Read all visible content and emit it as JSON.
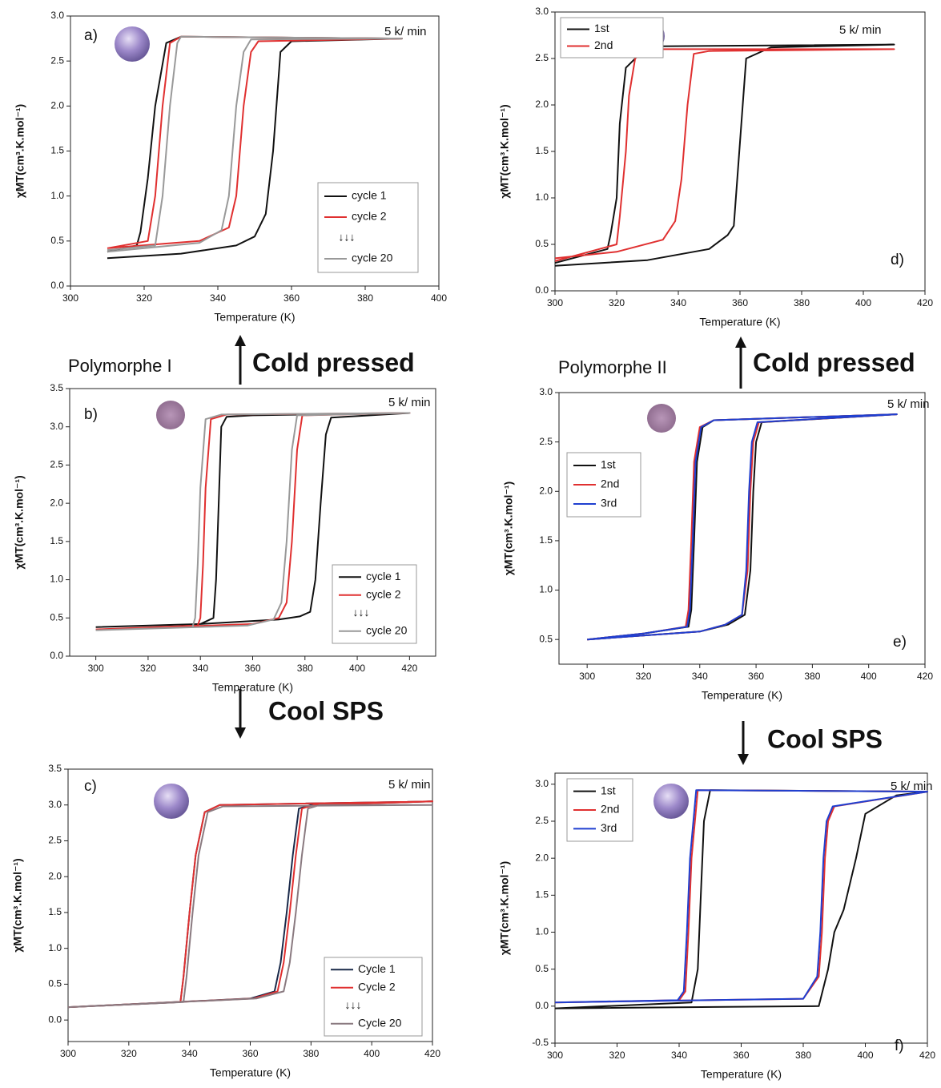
{
  "annotations": [
    "Polymorphe I",
    "Cold pressed",
    "Polymorphe II",
    "Cold pressed",
    "Cool SPS",
    "Cool SPS"
  ],
  "chart_data": [
    {
      "type": "line",
      "panel_label": "a)",
      "rate": "5 k/ min",
      "xlabel": "Temperature (K)",
      "ylabel": "χMT(cm³.K.mol⁻¹)",
      "xlim": [
        300,
        400
      ],
      "ylim": [
        0,
        3.0
      ],
      "xticks": [
        300,
        320,
        340,
        360,
        380,
        400
      ],
      "yticks": [
        {
          "value": 0,
          "label": "0.0"
        },
        0.5,
        {
          "value": 1,
          "label": "1.0"
        },
        1.5,
        {
          "value": 2,
          "label": "2.0"
        },
        2.5,
        {
          "value": 3,
          "label": "3.0"
        }
      ],
      "legend_note": "↓↓↓",
      "series": [
        {
          "name": "cycle 1",
          "color": "#111111",
          "x": [
            310,
            330,
            345,
            350,
            353,
            355,
            357,
            360,
            390,
            390,
            330,
            326,
            323,
            321,
            319,
            318,
            310
          ],
          "values": [
            0.31,
            0.36,
            0.45,
            0.55,
            0.8,
            1.5,
            2.6,
            2.72,
            2.75,
            2.75,
            2.77,
            2.7,
            2.0,
            1.2,
            0.6,
            0.45,
            0.38
          ]
        },
        {
          "name": "cycle 2",
          "color": "#e03030",
          "x": [
            310,
            335,
            343,
            345,
            347,
            349,
            351,
            390,
            390,
            330,
            327,
            325,
            323,
            321,
            310
          ],
          "values": [
            0.42,
            0.5,
            0.65,
            1.0,
            2.0,
            2.6,
            2.72,
            2.75,
            2.75,
            2.77,
            2.7,
            2.0,
            1.0,
            0.5,
            0.42
          ]
        },
        {
          "name": "cycle 20",
          "color": "#999999",
          "x": [
            310,
            335,
            341,
            343,
            345,
            347,
            349,
            390,
            390,
            330,
            329,
            327,
            325,
            323,
            310
          ],
          "values": [
            0.38,
            0.48,
            0.62,
            1.0,
            2.0,
            2.6,
            2.74,
            2.75,
            2.75,
            2.77,
            2.7,
            2.0,
            1.0,
            0.45,
            0.4
          ]
        }
      ]
    },
    {
      "type": "line",
      "panel_label": "b)",
      "rate": "5 k/ min",
      "xlabel": "Temperature (K)",
      "ylabel": "χMT(cm³.K.mol⁻¹)",
      "xlim": [
        290,
        430
      ],
      "ylim": [
        0,
        3.5
      ],
      "xticks": [
        300,
        320,
        340,
        360,
        380,
        400,
        420
      ],
      "yticks": [
        {
          "value": 0,
          "label": "0.0"
        },
        0.5,
        {
          "value": 1,
          "label": "1.0"
        },
        1.5,
        {
          "value": 2,
          "label": "2.0"
        },
        2.5,
        {
          "value": 3,
          "label": "3.0"
        },
        3.5
      ],
      "legend_note": "↓↓↓",
      "series": [
        {
          "name": "cycle 1",
          "color": "#111111",
          "x": [
            300,
            340,
            370,
            378,
            382,
            384,
            386,
            388,
            390,
            420,
            420,
            360,
            350,
            348,
            347,
            346,
            345,
            340,
            300
          ],
          "values": [
            0.38,
            0.42,
            0.48,
            0.52,
            0.58,
            1.0,
            2.0,
            2.9,
            3.12,
            3.18,
            3.18,
            3.15,
            3.13,
            3.0,
            2.0,
            1.0,
            0.5,
            0.42,
            0.38
          ]
        },
        {
          "name": "cycle 2",
          "color": "#e03030",
          "x": [
            300,
            360,
            370,
            373,
            375,
            377,
            379,
            420,
            420,
            350,
            344,
            342,
            341,
            340,
            339,
            300
          ],
          "values": [
            0.35,
            0.42,
            0.5,
            0.7,
            1.5,
            2.7,
            3.15,
            3.18,
            3.18,
            3.16,
            3.1,
            2.2,
            1.2,
            0.5,
            0.4,
            0.35
          ]
        },
        {
          "name": "cycle 20",
          "color": "#999999",
          "x": [
            300,
            358,
            368,
            371,
            373,
            375,
            377,
            420,
            420,
            348,
            342,
            340,
            339,
            338,
            337,
            300
          ],
          "values": [
            0.34,
            0.4,
            0.48,
            0.7,
            1.5,
            2.7,
            3.15,
            3.18,
            3.18,
            3.16,
            3.1,
            2.2,
            1.2,
            0.5,
            0.38,
            0.34
          ]
        }
      ]
    },
    {
      "type": "line",
      "panel_label": "c)",
      "rate": "5 k/ min",
      "xlabel": "Temperature (K)",
      "ylabel": "χMT(cm³.K.mol⁻¹)",
      "xlim": [
        300,
        420
      ],
      "ylim": [
        -0.3,
        3.5
      ],
      "xticks": [
        300,
        320,
        340,
        360,
        380,
        400,
        420
      ],
      "yticks": [
        {
          "value": 0,
          "label": "0.0"
        },
        0.5,
        {
          "value": 1,
          "label": "1.0"
        },
        1.5,
        {
          "value": 2,
          "label": "2.0"
        },
        2.5,
        {
          "value": 3,
          "label": "3.0"
        },
        3.5
      ],
      "legend_note": "↓↓↓",
      "series": [
        {
          "name": "Cycle 1",
          "color": "#1a2a4a",
          "x": [
            300,
            360,
            368,
            370,
            372,
            374,
            376,
            380,
            420,
            420,
            350,
            345,
            342,
            340,
            338,
            337,
            300
          ],
          "values": [
            0.18,
            0.3,
            0.4,
            0.8,
            1.5,
            2.3,
            2.95,
            3.0,
            3.05,
            3.05,
            3.0,
            2.9,
            2.3,
            1.5,
            0.6,
            0.25,
            0.18
          ]
        },
        {
          "name": "Cycle 2",
          "color": "#e03030",
          "x": [
            300,
            361,
            369,
            371,
            373,
            375,
            377,
            381,
            420,
            420,
            350,
            345,
            342,
            340,
            338,
            337,
            300
          ],
          "values": [
            0.18,
            0.3,
            0.4,
            0.8,
            1.5,
            2.3,
            2.95,
            3.0,
            3.05,
            3.05,
            3.0,
            2.9,
            2.3,
            1.5,
            0.6,
            0.25,
            0.18
          ]
        },
        {
          "name": "Cycle 20",
          "color": "#8a7a80",
          "x": [
            300,
            362,
            371,
            373,
            375,
            377,
            379,
            383,
            420,
            420,
            351,
            346,
            343,
            341,
            339,
            338,
            300
          ],
          "values": [
            0.18,
            0.3,
            0.4,
            0.8,
            1.5,
            2.3,
            2.95,
            3.0,
            3.0,
            3.0,
            2.98,
            2.9,
            2.3,
            1.5,
            0.6,
            0.25,
            0.18
          ]
        }
      ]
    },
    {
      "type": "line",
      "panel_label": "d)",
      "rate": "5 k/ min",
      "xlabel": "Temperature (K)",
      "ylabel": "χMT(cm³.K.mol⁻¹)",
      "xlim": [
        300,
        420
      ],
      "ylim": [
        0,
        3.0
      ],
      "xticks": [
        300,
        320,
        340,
        360,
        380,
        400,
        420
      ],
      "yticks": [
        {
          "value": 0,
          "label": "0.0"
        },
        0.5,
        {
          "value": 1,
          "label": "1.0"
        },
        1.5,
        {
          "value": 2,
          "label": "2.0"
        },
        2.5,
        {
          "value": 3,
          "label": "3.0"
        }
      ],
      "series": [
        {
          "name": "1st",
          "color": "#111111",
          "x": [
            300,
            330,
            350,
            356,
            358,
            360,
            362,
            370,
            410,
            410,
            330,
            323,
            321,
            320,
            318,
            317,
            300
          ],
          "values": [
            0.27,
            0.33,
            0.45,
            0.6,
            0.7,
            1.6,
            2.5,
            2.62,
            2.65,
            2.65,
            2.63,
            2.4,
            1.8,
            1.0,
            0.6,
            0.45,
            0.3
          ]
        },
        {
          "name": "2nd",
          "color": "#e03030",
          "x": [
            300,
            320,
            335,
            339,
            341,
            343,
            345,
            350,
            410,
            410,
            330,
            326,
            324,
            323,
            321,
            320,
            300
          ],
          "values": [
            0.35,
            0.42,
            0.55,
            0.75,
            1.2,
            2.0,
            2.55,
            2.58,
            2.6,
            2.6,
            2.6,
            2.5,
            2.1,
            1.5,
            0.8,
            0.5,
            0.32
          ]
        }
      ]
    },
    {
      "type": "line",
      "panel_label": "e)",
      "rate": "5 k/ min",
      "xlabel": "Temperature (K)",
      "ylabel": "χMT(cm³.K.mol⁻¹)",
      "xlim": [
        290,
        420
      ],
      "ylim": [
        0.25,
        3.0
      ],
      "xticks": [
        300,
        320,
        340,
        360,
        380,
        400,
        420
      ],
      "yticks": [
        0.5,
        {
          "value": 1,
          "label": "1.0"
        },
        1.5,
        {
          "value": 2,
          "label": "2.0"
        },
        2.5,
        {
          "value": 3,
          "label": "3.0"
        }
      ],
      "series": [
        {
          "name": "1st",
          "color": "#111111",
          "x": [
            300,
            340,
            350,
            356,
            358,
            359,
            360,
            362,
            410,
            410,
            345,
            341,
            339,
            338,
            337,
            336,
            320,
            300
          ],
          "values": [
            0.5,
            0.58,
            0.65,
            0.75,
            1.2,
            2.0,
            2.5,
            2.7,
            2.78,
            2.78,
            2.72,
            2.65,
            2.3,
            1.5,
            0.8,
            0.63,
            0.56,
            0.5
          ]
        },
        {
          "name": "2nd",
          "color": "#e03030",
          "x": [
            300,
            340,
            349,
            355,
            357,
            358,
            359,
            361,
            410,
            410,
            345,
            340,
            338,
            337,
            336,
            335,
            320,
            300
          ],
          "values": [
            0.5,
            0.58,
            0.65,
            0.75,
            1.2,
            2.0,
            2.5,
            2.7,
            2.78,
            2.78,
            2.72,
            2.65,
            2.3,
            1.5,
            0.8,
            0.63,
            0.56,
            0.5
          ]
        },
        {
          "name": "3rd",
          "color": "#1f3fd0",
          "x": [
            300,
            340,
            349,
            355,
            356.5,
            357.5,
            358.5,
            360.5,
            410,
            410,
            345,
            340.5,
            338.5,
            337.5,
            336.5,
            335.5,
            320,
            300
          ],
          "values": [
            0.5,
            0.58,
            0.65,
            0.75,
            1.2,
            2.0,
            2.5,
            2.7,
            2.78,
            2.78,
            2.72,
            2.65,
            2.3,
            1.5,
            0.8,
            0.63,
            0.56,
            0.5
          ]
        }
      ]
    },
    {
      "type": "line",
      "panel_label": "f)",
      "rate": "5 k/ min",
      "xlabel": "Temperature (K)",
      "ylabel": "χMT(cm³.K.mol⁻¹)",
      "xlim": [
        300,
        420
      ],
      "ylim": [
        -0.5,
        3.15
      ],
      "xticks": [
        300,
        320,
        340,
        360,
        380,
        400,
        420
      ],
      "yticks": [
        -0.5,
        {
          "value": 0,
          "label": "0.0"
        },
        0.5,
        {
          "value": 1,
          "label": "1.0"
        },
        1.5,
        {
          "value": 2,
          "label": "2.0"
        },
        2.5,
        {
          "value": 3,
          "label": "3.0"
        }
      ],
      "series": [
        {
          "name": "1st",
          "color": "#111111",
          "x": [
            300,
            385,
            388,
            390,
            393,
            397,
            400,
            410,
            420,
            420,
            350,
            348,
            347,
            346,
            344,
            300
          ],
          "values": [
            -0.03,
            0.0,
            0.5,
            1.0,
            1.3,
            2.0,
            2.6,
            2.85,
            2.9,
            2.9,
            2.92,
            2.5,
            1.5,
            0.5,
            0.05,
            -0.03
          ]
        },
        {
          "name": "2nd",
          "color": "#e03030",
          "x": [
            300,
            380,
            385,
            386,
            387,
            388,
            390,
            420,
            420,
            346,
            344,
            343,
            342,
            340,
            300
          ],
          "values": [
            0.05,
            0.1,
            0.4,
            1.0,
            2.0,
            2.5,
            2.7,
            2.9,
            2.9,
            2.92,
            2.0,
            1.0,
            0.2,
            0.08,
            0.05
          ]
        },
        {
          "name": "3rd",
          "color": "#1f3fd0",
          "x": [
            300,
            380,
            384.5,
            385.5,
            386.5,
            387.5,
            389.5,
            420,
            420,
            345.5,
            343.5,
            342.5,
            341.5,
            339.5,
            300
          ],
          "values": [
            0.05,
            0.1,
            0.4,
            1.0,
            2.0,
            2.5,
            2.7,
            2.9,
            2.9,
            2.92,
            2.0,
            1.0,
            0.2,
            0.08,
            0.05
          ]
        }
      ]
    }
  ]
}
